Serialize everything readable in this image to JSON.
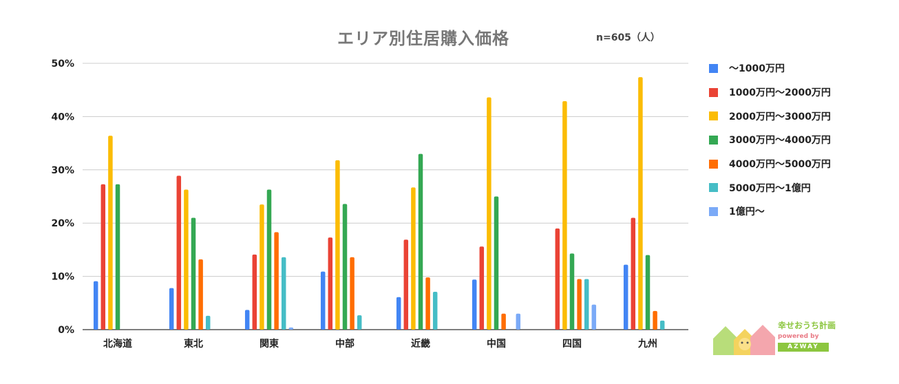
{
  "chart_data": {
    "type": "bar",
    "title": "エリア別住居購入価格",
    "sample_note": "n=605（人）",
    "categories": [
      "北海道",
      "東北",
      "関東",
      "中部",
      "近畿",
      "中国",
      "四国",
      "九州"
    ],
    "y_ticks": [
      "0%",
      "10%",
      "20%",
      "30%",
      "40%",
      "50%"
    ],
    "ylim": [
      0,
      50
    ],
    "unit": "%",
    "grid": true,
    "legend_position": "right",
    "series": [
      {
        "name": "～1000万円",
        "color": "#4285f4",
        "values": [
          9.1,
          7.8,
          3.7,
          10.9,
          6.1,
          9.4,
          0,
          12.2
        ]
      },
      {
        "name": "1000万円～2000万円",
        "color": "#ea4335",
        "values": [
          27.3,
          28.9,
          14.1,
          17.3,
          16.9,
          15.6,
          19.0,
          21.0
        ]
      },
      {
        "name": "2000万円～3000万円",
        "color": "#fbbc04",
        "values": [
          36.4,
          26.3,
          23.5,
          31.8,
          26.7,
          43.6,
          42.9,
          47.4
        ]
      },
      {
        "name": "3000万円～4000万円",
        "color": "#34a853",
        "values": [
          27.3,
          21.0,
          26.3,
          23.6,
          33.0,
          25.0,
          14.3,
          14.0
        ]
      },
      {
        "name": "4000万円～5000万円",
        "color": "#ff6d01",
        "values": [
          0,
          13.2,
          18.3,
          13.6,
          9.8,
          3.0,
          9.5,
          3.5
        ]
      },
      {
        "name": "5000万円～1億円",
        "color": "#46bdc6",
        "values": [
          0,
          2.6,
          13.6,
          2.7,
          7.1,
          0,
          9.5,
          1.7
        ]
      },
      {
        "name": "1億円～",
        "color": "#7baaf7",
        "values": [
          0,
          0,
          0.4,
          0,
          0,
          3.0,
          4.7,
          0
        ]
      }
    ]
  },
  "logo": {
    "brand": "幸せおうち計画",
    "powered": "powered by",
    "company": "AZWAY"
  }
}
